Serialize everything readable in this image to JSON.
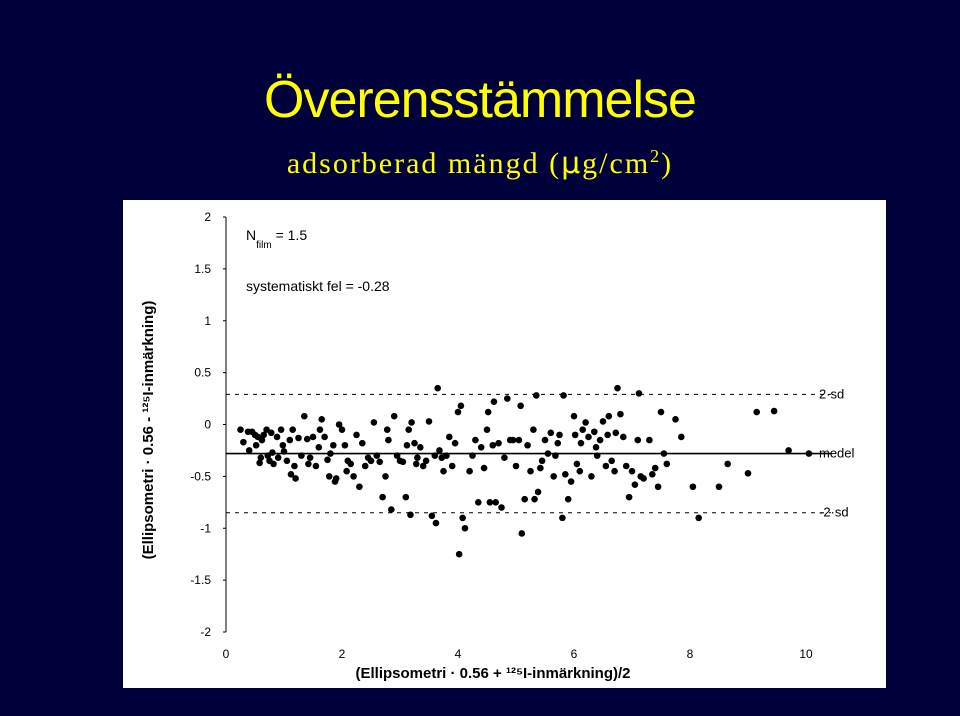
{
  "slide": {
    "title": "Överensstämmelse",
    "subtitle_prefix": "adsorberad mängd (",
    "subtitle_mu": "µ",
    "subtitle_unit": "g/cm",
    "subtitle_sup": "2",
    "subtitle_suffix": ")",
    "background_color": "#00003a",
    "title_color": "#ffff00"
  },
  "chart_data": {
    "type": "scatter",
    "title": "",
    "xlabel": "(Ellipsometri · 0.56 + ¹²⁵I-inmärkning)/2",
    "ylabel": "(Ellipsometri · 0.56 - ¹²⁵I-inmärkning)",
    "xlim": [
      0,
      10
    ],
    "ylim": [
      -2,
      2
    ],
    "x_ticks": [
      "0",
      "2",
      "4",
      "6",
      "8",
      "10"
    ],
    "y_ticks": [
      "2",
      "1.5",
      "1",
      "0.5",
      "0",
      "-0.5",
      "-1",
      "-1.5",
      "-2"
    ],
    "annotations": {
      "n_film_main": "N",
      "n_film_sub": "film",
      "n_film_rest": " = 1.5",
      "systematic_error": "systematiskt fel = -0.28"
    },
    "reference_lines": [
      {
        "name": "2·sd",
        "value": 0.29,
        "style": "dashed"
      },
      {
        "name": "medel",
        "value": -0.28,
        "style": "solid"
      },
      {
        "name": "-2·sd",
        "value": -0.85,
        "style": "dashed"
      }
    ],
    "points": [
      [
        0.25,
        -0.05
      ],
      [
        0.3,
        -0.17
      ],
      [
        0.38,
        -0.07
      ],
      [
        0.4,
        -0.25
      ],
      [
        0.45,
        -0.07
      ],
      [
        0.5,
        -0.1
      ],
      [
        0.52,
        -0.2
      ],
      [
        0.55,
        -0.12
      ],
      [
        0.58,
        -0.37
      ],
      [
        0.6,
        -0.32
      ],
      [
        0.62,
        -0.15
      ],
      [
        0.65,
        -0.1
      ],
      [
        0.7,
        -0.05
      ],
      [
        0.72,
        -0.3
      ],
      [
        0.75,
        -0.35
      ],
      [
        0.78,
        -0.08
      ],
      [
        0.8,
        -0.27
      ],
      [
        0.82,
        -0.38
      ],
      [
        0.88,
        -0.12
      ],
      [
        0.9,
        -0.32
      ],
      [
        0.95,
        -0.05
      ],
      [
        0.98,
        -0.2
      ],
      [
        1.0,
        -0.26
      ],
      [
        1.05,
        -0.35
      ],
      [
        1.1,
        -0.15
      ],
      [
        1.12,
        -0.48
      ],
      [
        1.15,
        -0.05
      ],
      [
        1.18,
        -0.4
      ],
      [
        1.2,
        -0.52
      ],
      [
        1.25,
        -0.13
      ],
      [
        1.3,
        -0.3
      ],
      [
        1.35,
        0.08
      ],
      [
        1.4,
        -0.14
      ],
      [
        1.42,
        -0.38
      ],
      [
        1.45,
        -0.32
      ],
      [
        1.5,
        -0.12
      ],
      [
        1.55,
        -0.4
      ],
      [
        1.6,
        -0.22
      ],
      [
        1.62,
        -0.05
      ],
      [
        1.65,
        0.05
      ],
      [
        1.7,
        -0.12
      ],
      [
        1.75,
        -0.34
      ],
      [
        1.78,
        -0.5
      ],
      [
        1.8,
        -0.28
      ],
      [
        1.85,
        -0.2
      ],
      [
        1.88,
        -0.55
      ],
      [
        1.9,
        -0.52
      ],
      [
        1.95,
        0.0
      ],
      [
        2.0,
        -0.05
      ],
      [
        2.05,
        -0.2
      ],
      [
        2.08,
        -0.45
      ],
      [
        2.1,
        -0.35
      ],
      [
        2.15,
        -0.38
      ],
      [
        2.2,
        -0.5
      ],
      [
        2.25,
        -0.1
      ],
      [
        2.3,
        -0.6
      ],
      [
        2.35,
        -0.18
      ],
      [
        2.4,
        -0.4
      ],
      [
        2.45,
        -0.32
      ],
      [
        2.5,
        -0.35
      ],
      [
        2.55,
        0.02
      ],
      [
        2.6,
        -0.3
      ],
      [
        2.65,
        -0.36
      ],
      [
        2.7,
        -0.7
      ],
      [
        2.75,
        -0.5
      ],
      [
        2.78,
        -0.05
      ],
      [
        2.8,
        -0.15
      ],
      [
        2.85,
        -0.82
      ],
      [
        2.9,
        0.08
      ],
      [
        2.95,
        -0.3
      ],
      [
        3.0,
        -0.35
      ],
      [
        3.05,
        -0.36
      ],
      [
        3.1,
        -0.7
      ],
      [
        3.12,
        -0.2
      ],
      [
        3.15,
        -0.05
      ],
      [
        3.18,
        -0.87
      ],
      [
        3.2,
        0.02
      ],
      [
        3.25,
        -0.18
      ],
      [
        3.28,
        -0.38
      ],
      [
        3.3,
        -0.32
      ],
      [
        3.35,
        -0.22
      ],
      [
        3.4,
        -0.4
      ],
      [
        3.45,
        -0.35
      ],
      [
        3.5,
        0.03
      ],
      [
        3.55,
        -0.88
      ],
      [
        3.6,
        -0.3
      ],
      [
        3.62,
        -0.95
      ],
      [
        3.65,
        0.35
      ],
      [
        3.68,
        -0.25
      ],
      [
        3.72,
        -0.32
      ],
      [
        3.75,
        -0.45
      ],
      [
        3.8,
        -0.3
      ],
      [
        3.85,
        -0.12
      ],
      [
        3.9,
        -0.4
      ],
      [
        3.95,
        -0.18
      ],
      [
        4.0,
        0.12
      ],
      [
        4.02,
        -1.25
      ],
      [
        4.05,
        0.18
      ],
      [
        4.08,
        -0.9
      ],
      [
        4.12,
        -1.0
      ],
      [
        4.2,
        -0.45
      ],
      [
        4.25,
        -0.3
      ],
      [
        4.3,
        -0.15
      ],
      [
        4.35,
        -0.75
      ],
      [
        4.4,
        -0.22
      ],
      [
        4.45,
        -0.42
      ],
      [
        4.5,
        -0.05
      ],
      [
        4.52,
        0.12
      ],
      [
        4.55,
        -0.75
      ],
      [
        4.6,
        -0.2
      ],
      [
        4.62,
        0.22
      ],
      [
        4.65,
        -0.75
      ],
      [
        4.7,
        -0.18
      ],
      [
        4.75,
        -0.8
      ],
      [
        4.8,
        -0.32
      ],
      [
        4.85,
        0.25
      ],
      [
        4.9,
        -0.15
      ],
      [
        4.95,
        -0.15
      ],
      [
        5.0,
        -0.4
      ],
      [
        5.05,
        -0.15
      ],
      [
        5.08,
        0.18
      ],
      [
        5.1,
        -1.05
      ],
      [
        5.15,
        -0.72
      ],
      [
        5.2,
        -0.2
      ],
      [
        5.25,
        -0.45
      ],
      [
        5.3,
        -0.05
      ],
      [
        5.32,
        -0.72
      ],
      [
        5.35,
        0.28
      ],
      [
        5.38,
        -0.65
      ],
      [
        5.42,
        -0.42
      ],
      [
        5.45,
        -0.35
      ],
      [
        5.5,
        -0.15
      ],
      [
        5.55,
        -0.28
      ],
      [
        5.6,
        -0.08
      ],
      [
        5.65,
        -0.5
      ],
      [
        5.68,
        -0.3
      ],
      [
        5.72,
        -0.18
      ],
      [
        5.75,
        -0.1
      ],
      [
        5.8,
        -0.9
      ],
      [
        5.82,
        0.28
      ],
      [
        5.85,
        -0.48
      ],
      [
        5.9,
        -0.72
      ],
      [
        5.95,
        -0.55
      ],
      [
        6.0,
        0.08
      ],
      [
        6.02,
        -0.1
      ],
      [
        6.05,
        -0.38
      ],
      [
        6.1,
        -0.45
      ],
      [
        6.12,
        -0.18
      ],
      [
        6.15,
        -0.05
      ],
      [
        6.2,
        0.02
      ],
      [
        6.25,
        -0.12
      ],
      [
        6.3,
        -0.5
      ],
      [
        6.35,
        -0.07
      ],
      [
        6.38,
        -0.22
      ],
      [
        6.4,
        -0.3
      ],
      [
        6.45,
        -0.15
      ],
      [
        6.5,
        0.03
      ],
      [
        6.55,
        -0.4
      ],
      [
        6.58,
        -0.1
      ],
      [
        6.6,
        0.08
      ],
      [
        6.65,
        -0.35
      ],
      [
        6.7,
        -0.45
      ],
      [
        6.72,
        -0.08
      ],
      [
        6.75,
        0.35
      ],
      [
        6.8,
        0.1
      ],
      [
        6.85,
        -0.12
      ],
      [
        6.9,
        -0.4
      ],
      [
        6.95,
        -0.7
      ],
      [
        7.0,
        -0.45
      ],
      [
        7.05,
        -0.58
      ],
      [
        7.1,
        -0.15
      ],
      [
        7.12,
        0.3
      ],
      [
        7.15,
        -0.5
      ],
      [
        7.2,
        -0.52
      ],
      [
        7.3,
        -0.15
      ],
      [
        7.35,
        -0.48
      ],
      [
        7.4,
        -0.42
      ],
      [
        7.45,
        -0.6
      ],
      [
        7.5,
        0.12
      ],
      [
        7.55,
        -0.28
      ],
      [
        7.6,
        -0.38
      ],
      [
        7.75,
        0.05
      ],
      [
        7.85,
        -0.12
      ],
      [
        8.05,
        -0.6
      ],
      [
        8.15,
        -0.9
      ],
      [
        8.5,
        -0.6
      ],
      [
        8.65,
        -0.38
      ],
      [
        9.0,
        -0.47
      ],
      [
        9.15,
        0.12
      ],
      [
        9.45,
        0.13
      ],
      [
        9.7,
        -0.25
      ],
      [
        10.05,
        -0.28
      ]
    ]
  }
}
